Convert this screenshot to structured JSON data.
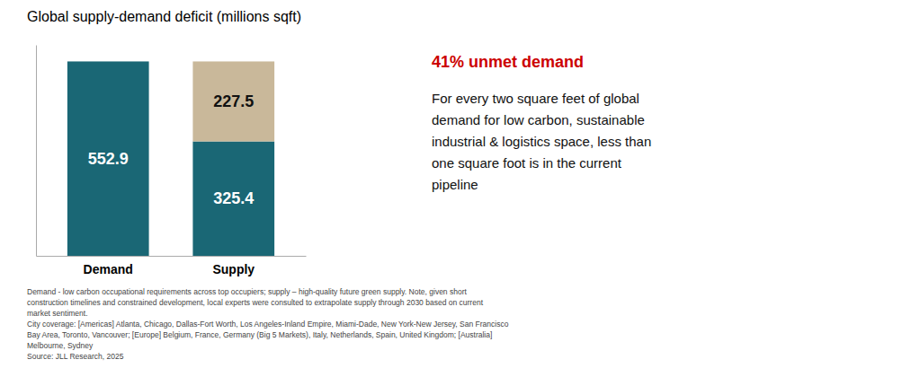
{
  "chart_data": {
    "type": "bar",
    "stacked": true,
    "title": "Global supply-demand deficit (millions sqft)",
    "categories": [
      "Demand",
      "Supply"
    ],
    "series": [
      {
        "color": "#1a6775",
        "values": [
          552.9,
          325.4
        ]
      },
      {
        "color": "#c9b89a",
        "values": [
          null,
          227.5
        ]
      }
    ],
    "ylim": [
      0,
      600
    ],
    "data_labels": true,
    "tick_labels": "x",
    "grid": false,
    "annotations": [
      {
        "text": "41% unmet demand",
        "color": "#cc0000"
      },
      {
        "text": "For every two square feet of global\ndemand for low carbon, sustainable\nindustrial & logistics space, less than\none square foot is in the current\npipeline"
      },
      {
        "text": "Demand - low carbon occupational requirements across top occupiers; supply – high-quality future green supply. Note, given short\nconstruction timelines and constrained development, local experts were consulted to extrapolate supply through 2030 based on current\nmarket sentiment.\nCity coverage: [Americas] Atlanta, Chicago, Dallas-Fort Worth, Los Angeles-Inland Empire, Miami-Dade, New York-New Jersey, San Francisco\nBay Area, Toronto, Vancouver; [Europe] Belgium, France, Germany (Big 5 Markets), Italy, Netherlands, Spain, United Kingdom; [Australia]\nMelbourne, Sydney\nSource: JLL Research, 2025"
      }
    ]
  }
}
